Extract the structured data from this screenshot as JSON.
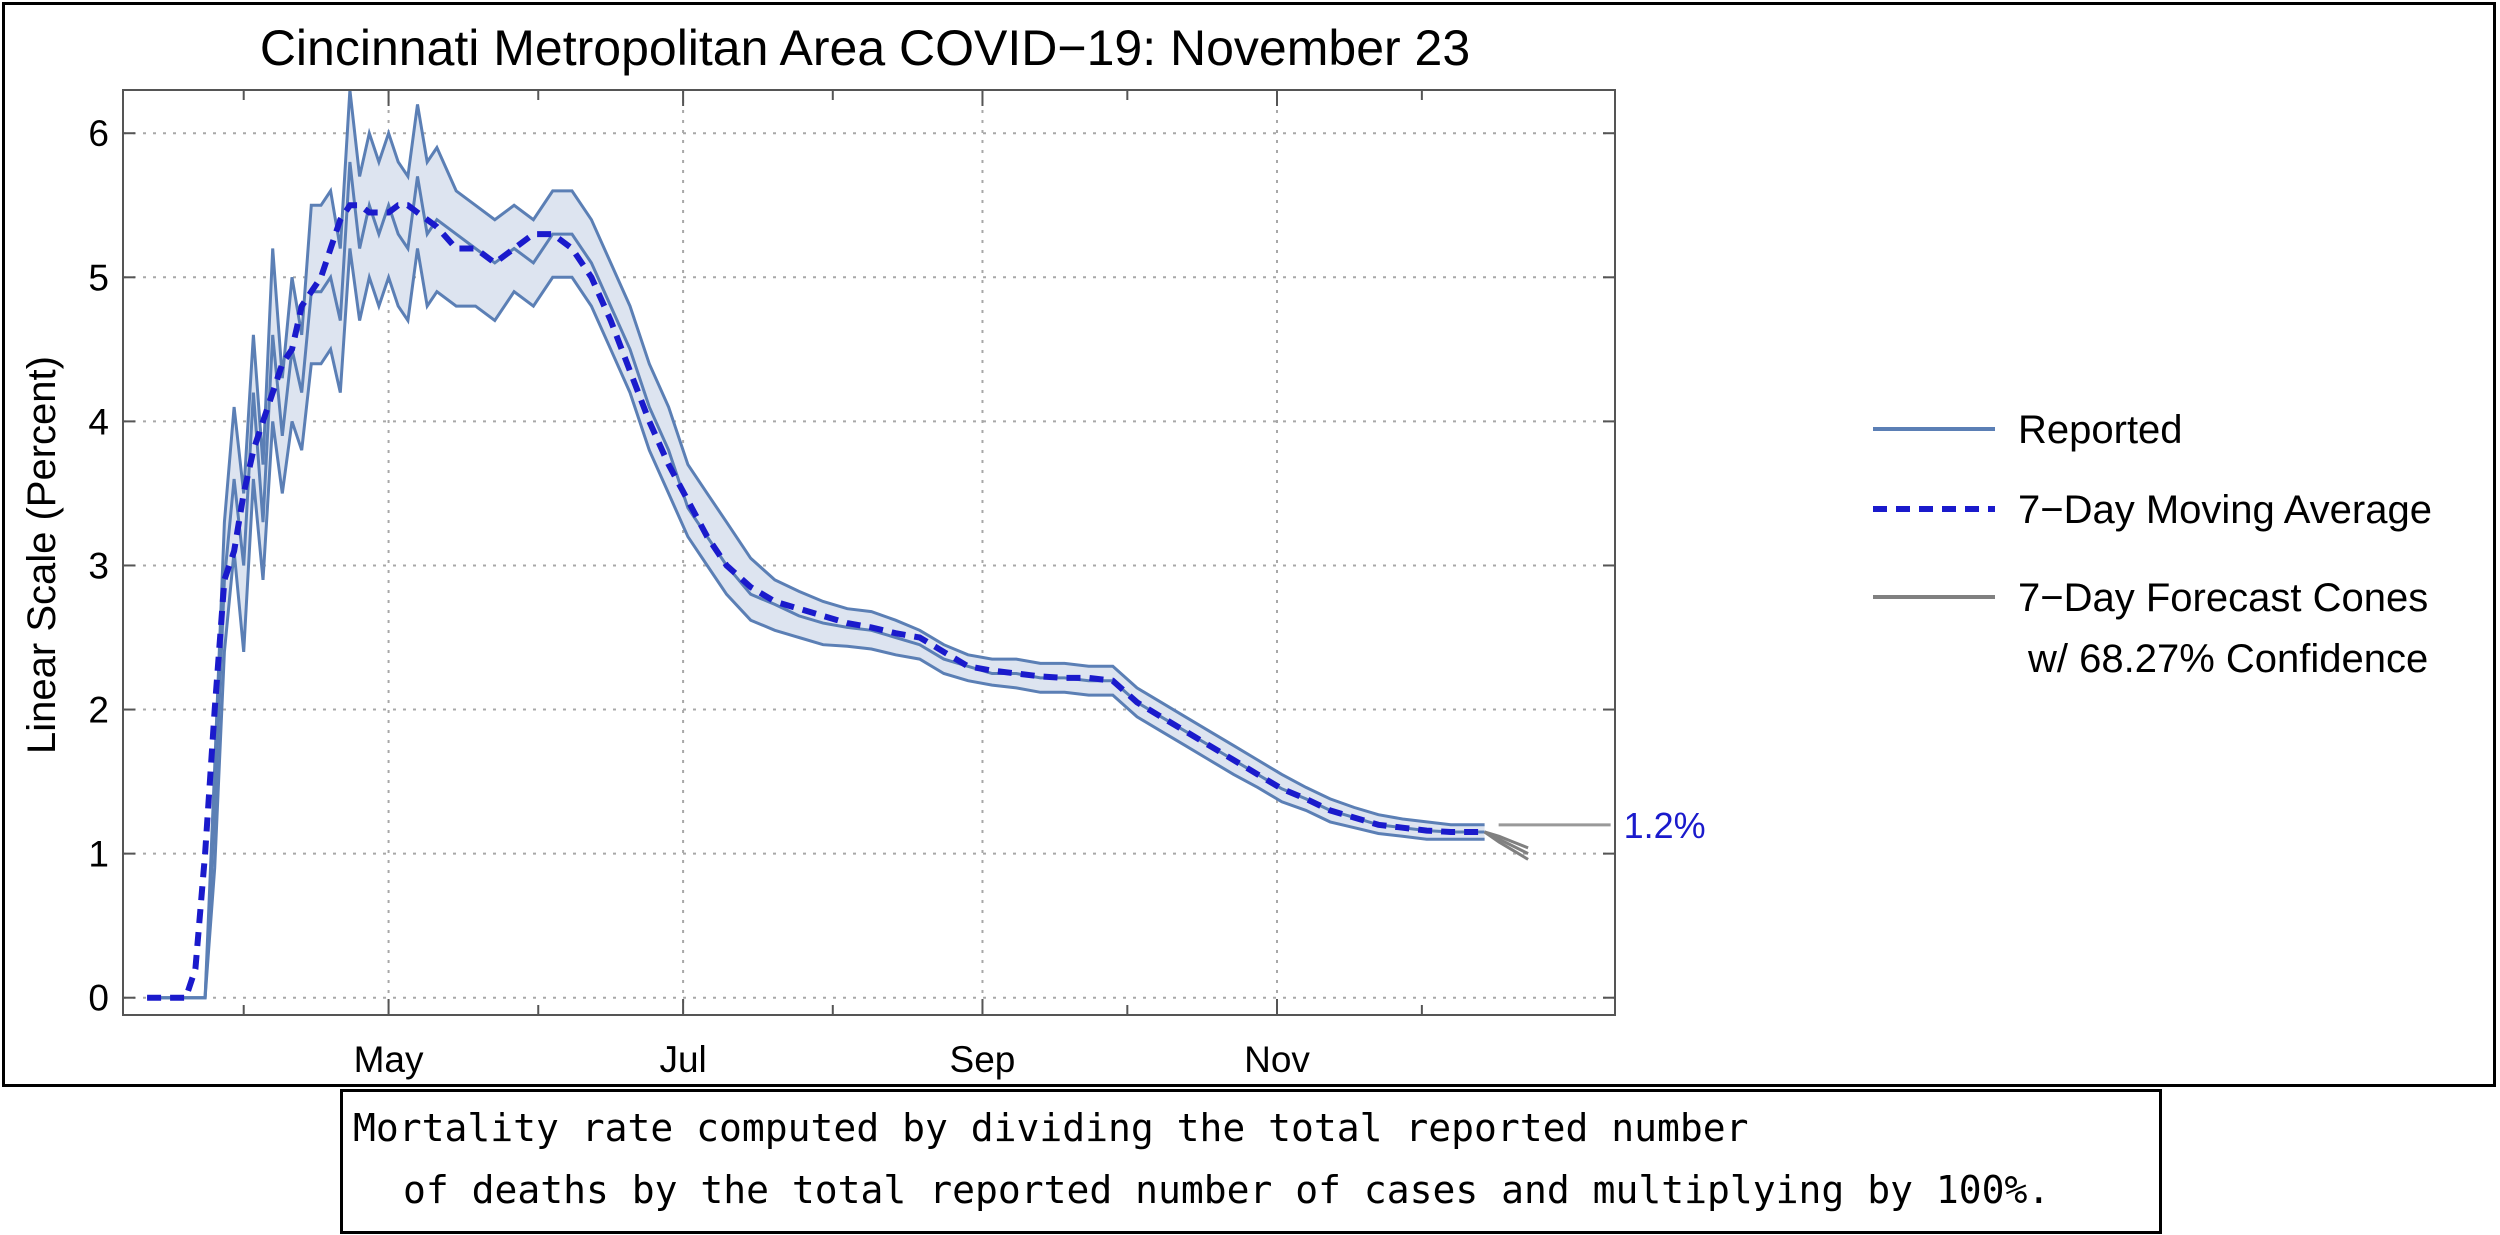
{
  "chart_data": {
    "type": "line",
    "title": "Cincinnati Metropolitan Area COVID−19: November 23",
    "xlabel": "",
    "ylabel": "Linear Scale (Percent)",
    "ylim": [
      -0.12,
      6.3
    ],
    "xlim": [
      -25,
      284
    ],
    "x_ticks_labeled": [
      {
        "day": 30,
        "label": "May"
      },
      {
        "day": 91,
        "label": "Jul"
      },
      {
        "day": 153,
        "label": "Sep"
      },
      {
        "day": 214,
        "label": "Nov"
      }
    ],
    "x_minor_ticks": [
      0,
      61,
      122,
      183,
      244
    ],
    "y_ticks": [
      {
        "value": 0,
        "label": "0"
      },
      {
        "value": 1,
        "label": "1"
      },
      {
        "value": 2,
        "label": "2"
      },
      {
        "value": 3,
        "label": "3"
      },
      {
        "value": 4,
        "label": "4"
      },
      {
        "value": 5,
        "label": "5"
      },
      {
        "value": 6,
        "label": "6"
      }
    ],
    "grid": true,
    "legend_position": "right",
    "series": [
      {
        "name": "Reported",
        "color": "#5b7fb5",
        "x": [
          -20,
          -16,
          -12,
          -8,
          -6,
          -4,
          -2,
          0,
          2,
          4,
          6,
          8,
          10,
          12,
          14,
          16,
          18,
          20,
          22,
          24,
          26,
          28,
          30,
          32,
          34,
          36,
          38,
          40,
          44,
          48,
          52,
          56,
          60,
          64,
          68,
          72,
          76,
          80,
          84,
          88,
          92,
          96,
          100,
          105,
          110,
          115,
          120,
          125,
          130,
          135,
          140,
          145,
          150,
          155,
          160,
          165,
          170,
          175,
          180,
          185,
          190,
          195,
          200,
          205,
          210,
          215,
          220,
          225,
          230,
          235,
          240,
          245,
          250,
          254,
          257
        ],
        "y": [
          0,
          0,
          0,
          0,
          1.3,
          2.9,
          3.6,
          3.0,
          4.2,
          3.3,
          4.6,
          3.9,
          4.5,
          4.2,
          4.9,
          4.9,
          5.0,
          4.7,
          5.8,
          5.2,
          5.5,
          5.3,
          5.5,
          5.3,
          5.2,
          5.7,
          5.3,
          5.4,
          5.3,
          5.2,
          5.1,
          5.2,
          5.1,
          5.3,
          5.3,
          5.1,
          4.8,
          4.5,
          4.1,
          3.8,
          3.4,
          3.2,
          3.0,
          2.8,
          2.73,
          2.65,
          2.6,
          2.57,
          2.55,
          2.5,
          2.45,
          2.35,
          2.3,
          2.25,
          2.25,
          2.22,
          2.22,
          2.2,
          2.2,
          2.05,
          1.95,
          1.85,
          1.75,
          1.65,
          1.55,
          1.45,
          1.38,
          1.3,
          1.25,
          1.2,
          1.18,
          1.16,
          1.15,
          1.15,
          1.15
        ]
      },
      {
        "name": "7−Day Moving Average",
        "color": "#1a1acc",
        "x": [
          -20,
          -16,
          -12,
          -10,
          -8,
          -6,
          -4,
          -2,
          0,
          2,
          4,
          6,
          8,
          10,
          12,
          14,
          16,
          18,
          20,
          22,
          24,
          26,
          28,
          30,
          32,
          34,
          36,
          38,
          40,
          44,
          48,
          52,
          56,
          60,
          64,
          68,
          72,
          76,
          80,
          84,
          88,
          92,
          96,
          100,
          105,
          110,
          115,
          120,
          125,
          130,
          135,
          140,
          145,
          150,
          155,
          160,
          165,
          170,
          175,
          180,
          185,
          190,
          195,
          200,
          205,
          210,
          215,
          220,
          225,
          230,
          235,
          240,
          245,
          250,
          254,
          257
        ],
        "y": [
          0,
          0,
          0,
          0.2,
          1.0,
          2.0,
          2.9,
          3.1,
          3.5,
          3.8,
          4.0,
          4.2,
          4.4,
          4.5,
          4.8,
          4.9,
          5.0,
          5.2,
          5.4,
          5.5,
          5.5,
          5.45,
          5.45,
          5.45,
          5.5,
          5.5,
          5.45,
          5.4,
          5.35,
          5.2,
          5.2,
          5.1,
          5.2,
          5.3,
          5.3,
          5.2,
          5.0,
          4.7,
          4.35,
          4.0,
          3.7,
          3.45,
          3.2,
          3.0,
          2.85,
          2.75,
          2.7,
          2.65,
          2.6,
          2.57,
          2.53,
          2.5,
          2.4,
          2.3,
          2.27,
          2.25,
          2.23,
          2.22,
          2.22,
          2.2,
          2.05,
          1.95,
          1.85,
          1.75,
          1.65,
          1.55,
          1.45,
          1.38,
          1.3,
          1.25,
          1.2,
          1.18,
          1.16,
          1.15,
          1.15,
          1.15
        ]
      },
      {
        "name": "7−Day Forecast Cones",
        "name_line2": "w/ 68.27% Confidence",
        "color": "#808080",
        "x": [
          257,
          260,
          263,
          266
        ],
        "y_center": [
          1.15,
          1.1,
          1.05,
          1.0
        ],
        "y_lower": [
          1.15,
          1.08,
          1.02,
          0.96
        ],
        "y_upper": [
          1.15,
          1.12,
          1.08,
          1.04
        ]
      }
    ],
    "band": {
      "name": "Reported",
      "fill": "#dde4f0",
      "x": [
        -20,
        -16,
        -12,
        -8,
        -6,
        -4,
        -2,
        0,
        2,
        4,
        6,
        8,
        10,
        12,
        14,
        16,
        18,
        20,
        22,
        24,
        26,
        28,
        30,
        32,
        34,
        36,
        38,
        40,
        44,
        48,
        52,
        56,
        60,
        64,
        68,
        72,
        76,
        80,
        84,
        88,
        92,
        96,
        100,
        105,
        110,
        115,
        120,
        125,
        130,
        135,
        140,
        145,
        150,
        155,
        160,
        165,
        170,
        175,
        180,
        185,
        190,
        195,
        200,
        205,
        210,
        215,
        220,
        225,
        230,
        235,
        240,
        245,
        250,
        254,
        257
      ],
      "upper": [
        0,
        0,
        0,
        0,
        1.6,
        3.3,
        4.1,
        3.5,
        4.6,
        3.7,
        5.2,
        4.3,
        5.0,
        4.6,
        5.5,
        5.5,
        5.6,
        5.2,
        6.3,
        5.7,
        6.0,
        5.8,
        6.0,
        5.8,
        5.7,
        6.2,
        5.8,
        5.9,
        5.6,
        5.5,
        5.4,
        5.5,
        5.4,
        5.6,
        5.6,
        5.4,
        5.1,
        4.8,
        4.4,
        4.1,
        3.7,
        3.5,
        3.3,
        3.05,
        2.9,
        2.82,
        2.75,
        2.7,
        2.68,
        2.62,
        2.55,
        2.45,
        2.38,
        2.35,
        2.35,
        2.32,
        2.32,
        2.3,
        2.3,
        2.15,
        2.05,
        1.95,
        1.85,
        1.75,
        1.65,
        1.55,
        1.46,
        1.38,
        1.32,
        1.27,
        1.24,
        1.22,
        1.2,
        1.2,
        1.2
      ],
      "lower": [
        0,
        0,
        0,
        0,
        0.9,
        2.4,
        3.1,
        2.4,
        3.6,
        2.9,
        4.0,
        3.5,
        4.0,
        3.8,
        4.4,
        4.4,
        4.5,
        4.2,
        5.2,
        4.7,
        5.0,
        4.8,
        5.0,
        4.8,
        4.7,
        5.2,
        4.8,
        4.9,
        4.8,
        4.8,
        4.7,
        4.9,
        4.8,
        5.0,
        5.0,
        4.8,
        4.5,
        4.2,
        3.8,
        3.5,
        3.2,
        3.0,
        2.8,
        2.62,
        2.55,
        2.5,
        2.45,
        2.44,
        2.42,
        2.38,
        2.35,
        2.25,
        2.2,
        2.17,
        2.15,
        2.12,
        2.12,
        2.1,
        2.1,
        1.95,
        1.85,
        1.75,
        1.65,
        1.55,
        1.46,
        1.36,
        1.3,
        1.22,
        1.18,
        1.14,
        1.12,
        1.1,
        1.1,
        1.1,
        1.1
      ]
    },
    "annotations": [
      {
        "text": "1.2%",
        "x": 257,
        "y": 1.2,
        "color": "#1a1acc"
      }
    ]
  },
  "note": {
    "line1": "Mortality rate computed by dividing the total reported number",
    "line2": "of deaths by the total reported number of cases and multiplying by 100%."
  }
}
